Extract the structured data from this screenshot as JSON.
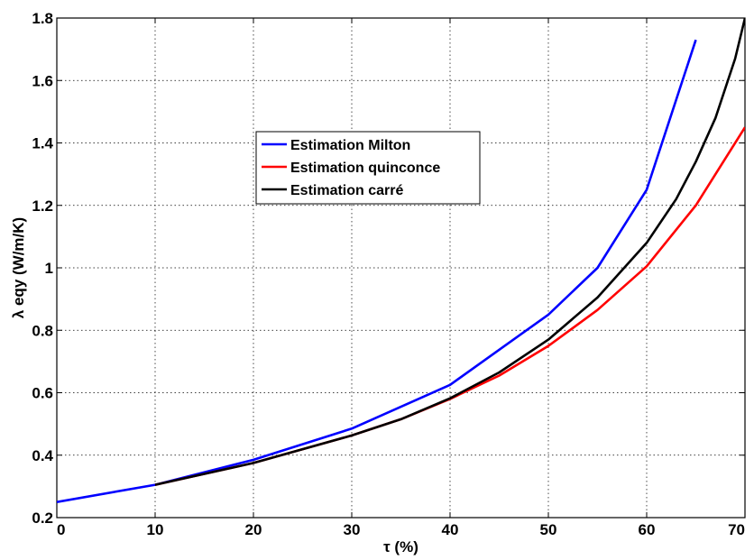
{
  "chart_data": {
    "type": "line",
    "title": "",
    "xlabel": "τ (%)",
    "ylabel": "λ eqy (W/m/K)",
    "xlim": [
      0,
      70
    ],
    "ylim": [
      0.2,
      1.8
    ],
    "xticks": [
      0,
      10,
      20,
      30,
      40,
      50,
      60,
      70
    ],
    "yticks": [
      0.2,
      0.4,
      0.6,
      0.8,
      1.0,
      1.2,
      1.4,
      1.6,
      1.8
    ],
    "xtick_labels": [
      "0",
      "10",
      "20",
      "30",
      "40",
      "50",
      "60",
      "70"
    ],
    "ytick_labels": [
      "0.2",
      "0.4",
      "0.6",
      "0.8",
      "1",
      "1.2",
      "1.4",
      "1.6",
      "1.8"
    ],
    "grid": true,
    "legend_position": "center-left",
    "series": [
      {
        "name": "Estimation Milton",
        "color": "#0000ff",
        "x": [
          0,
          10,
          20,
          30,
          40,
          50,
          55,
          60,
          65
        ],
        "y": [
          0.25,
          0.305,
          0.385,
          0.485,
          0.625,
          0.85,
          1.0,
          1.25,
          1.73
        ]
      },
      {
        "name": "Estimation quinconce",
        "color": "#ff0000",
        "x": [
          10,
          20,
          30,
          35,
          40,
          45,
          50,
          55,
          60,
          65,
          70
        ],
        "y": [
          0.305,
          0.375,
          0.463,
          0.515,
          0.58,
          0.655,
          0.75,
          0.865,
          1.005,
          1.2,
          1.45
        ]
      },
      {
        "name": "Estimation carré",
        "color": "#000000",
        "x": [
          10,
          20,
          30,
          35,
          40,
          45,
          50,
          55,
          60,
          63,
          65,
          67,
          69,
          70
        ],
        "y": [
          0.305,
          0.375,
          0.463,
          0.515,
          0.582,
          0.665,
          0.77,
          0.905,
          1.08,
          1.22,
          1.34,
          1.48,
          1.67,
          1.8
        ]
      }
    ]
  }
}
